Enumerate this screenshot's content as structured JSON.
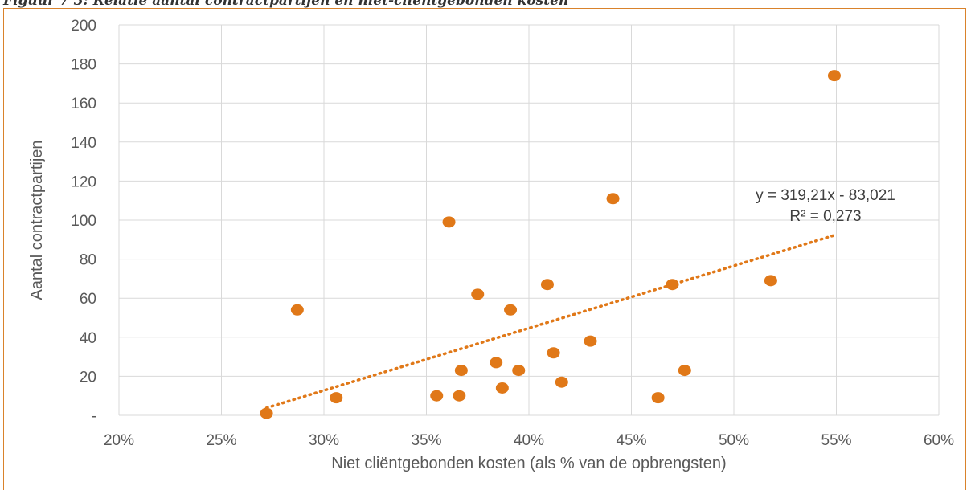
{
  "caption": "Figuur 7 3: Relatie aantal contractpartijen en niet-cliëntgebonden kosten",
  "colors": {
    "marker": "#e07818",
    "frame": "#d9822b",
    "grid": "#d9d9d9",
    "text": "#595959"
  },
  "chart_data": {
    "type": "scatter",
    "xlabel": "Niet cliëntgebonden kosten (als % van de opbrengsten)",
    "ylabel": "Aantal contractpartijen",
    "xlim": [
      0.2,
      0.6
    ],
    "ylim": [
      0,
      200
    ],
    "grid": true,
    "x_ticks": [
      "20%",
      "25%",
      "30%",
      "35%",
      "40%",
      "45%",
      "50%",
      "55%",
      "60%"
    ],
    "y_ticks": [
      "-",
      "20",
      "40",
      "60",
      "80",
      "100",
      "120",
      "140",
      "160",
      "180",
      "200"
    ],
    "points": [
      {
        "x": 0.272,
        "y": 1
      },
      {
        "x": 0.287,
        "y": 54
      },
      {
        "x": 0.306,
        "y": 9
      },
      {
        "x": 0.355,
        "y": 10
      },
      {
        "x": 0.361,
        "y": 99
      },
      {
        "x": 0.366,
        "y": 10
      },
      {
        "x": 0.367,
        "y": 23
      },
      {
        "x": 0.375,
        "y": 62
      },
      {
        "x": 0.384,
        "y": 27
      },
      {
        "x": 0.387,
        "y": 14
      },
      {
        "x": 0.391,
        "y": 54
      },
      {
        "x": 0.395,
        "y": 23
      },
      {
        "x": 0.409,
        "y": 67
      },
      {
        "x": 0.412,
        "y": 32
      },
      {
        "x": 0.416,
        "y": 17
      },
      {
        "x": 0.43,
        "y": 38
      },
      {
        "x": 0.441,
        "y": 111
      },
      {
        "x": 0.463,
        "y": 9
      },
      {
        "x": 0.47,
        "y": 67
      },
      {
        "x": 0.476,
        "y": 23
      },
      {
        "x": 0.518,
        "y": 69
      },
      {
        "x": 0.549,
        "y": 174
      }
    ],
    "trendline": {
      "type": "linear",
      "slope": 319.21,
      "intercept": -83.021,
      "x_range": [
        0.272,
        0.549
      ],
      "equation": "y = 319,21x - 83,021",
      "r2": "R² = 0,273"
    }
  }
}
